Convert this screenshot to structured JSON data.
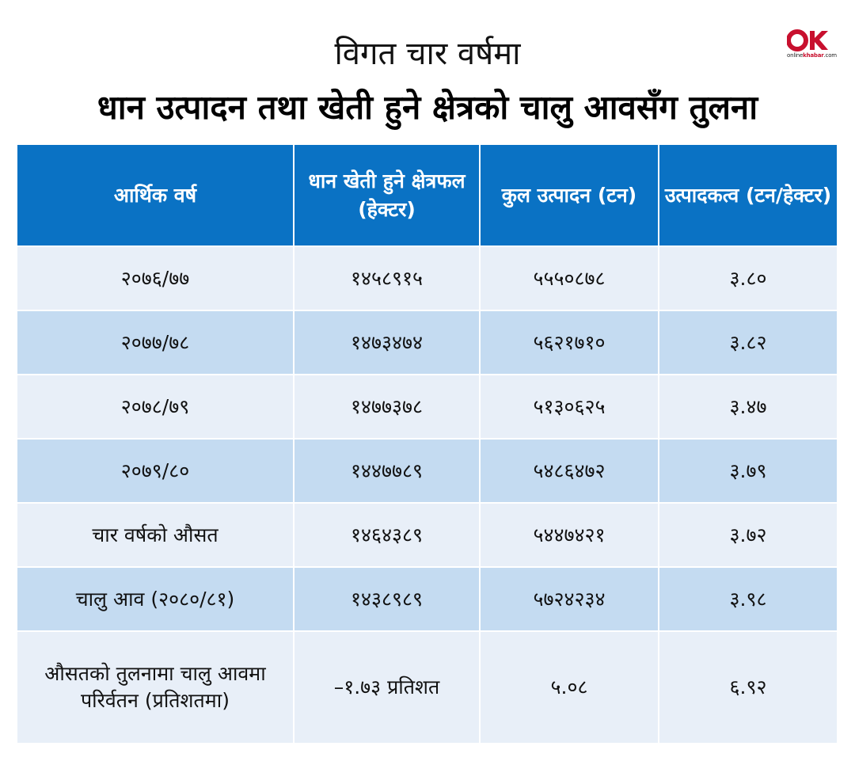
{
  "header": {
    "subtitle": "विगत चार वर्षमा",
    "title": "धान उत्पादन तथा खेती हुने क्षेत्रको चालु आवसँग तुलना",
    "logo_text_a": "online",
    "logo_text_b": "khabar",
    "logo_suffix": ".com"
  },
  "colors": {
    "header_blue": "#0a72c4",
    "row_light": "#e8eff8",
    "row_mid": "#c4dbf1",
    "logo_red": "#c8102e"
  },
  "chart_data": {
    "type": "table",
    "title": "धान उत्पादन तथा खेती हुने क्षेत्रको चालु आवसँग तुलना",
    "subtitle": "विगत चार वर्षमा",
    "columns": [
      "आर्थिक वर्ष",
      "धान खेती हुने क्षेत्रफल (हेक्टर)",
      "कुल उत्पादन (टन)",
      "उत्पादकत्व (टन/हेक्टर)"
    ],
    "rows": [
      [
        "२०७६/७७",
        "१४५८९१५",
        "५५५०८७८",
        "३.८०"
      ],
      [
        "२०७७/७८",
        "१४७३४७४",
        "५६२१७१०",
        "३.८२"
      ],
      [
        "२०७८/७९",
        "१४७७३७८",
        "५१३०६२५",
        "३.४७"
      ],
      [
        "२०७९/८०",
        "१४४७७८९",
        "५४८६४७२",
        "३.७९"
      ],
      [
        "चार वर्षको औसत",
        "१४६४३८९",
        "५४४७४२१",
        "३.७२"
      ],
      [
        "चालु आव (२०८०/८१)",
        "१४३८९८९",
        "५७२४२३४",
        "३.९८"
      ],
      [
        "औसतको तुलनामा चालु आवमा परिर्वतन (प्रतिशतमा)",
        "–१.७३ प्रतिशत",
        "५.०८",
        "६.९२"
      ]
    ]
  }
}
